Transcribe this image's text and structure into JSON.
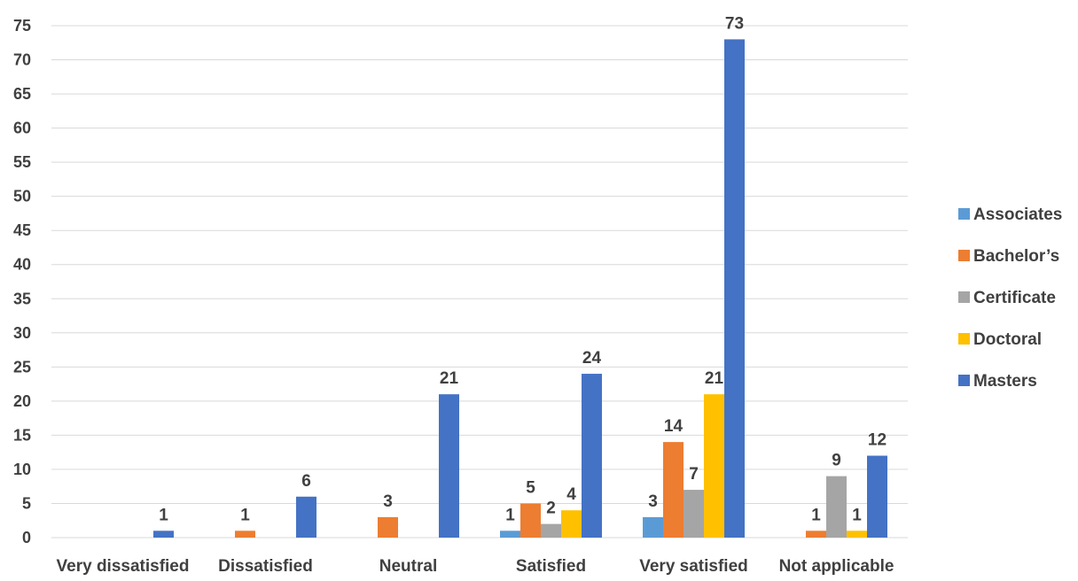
{
  "chart_data": {
    "type": "bar",
    "title": "",
    "xlabel": "",
    "ylabel": "",
    "ylim": [
      0,
      75
    ],
    "y_ticks": [
      0,
      5,
      10,
      15,
      20,
      25,
      30,
      35,
      40,
      45,
      50,
      55,
      60,
      65,
      70,
      75
    ],
    "grid": true,
    "legend_position": "right",
    "categories": [
      "Very dissatisfied",
      "Dissatisfied",
      "Neutral",
      "Satisfied",
      "Very satisfied",
      "Not applicable"
    ],
    "series": [
      {
        "name": "Associates",
        "color": "#5B9BD5",
        "values": [
          0,
          0,
          0,
          1,
          3,
          0
        ]
      },
      {
        "name": "Bachelor’s",
        "color": "#ED7D31",
        "values": [
          0,
          1,
          3,
          5,
          14,
          1
        ]
      },
      {
        "name": "Certificate",
        "color": "#A5A5A5",
        "values": [
          0,
          0,
          0,
          2,
          7,
          9
        ]
      },
      {
        "name": "Doctoral",
        "color": "#FFC000",
        "values": [
          0,
          0,
          0,
          4,
          21,
          1
        ]
      },
      {
        "name": "Masters",
        "color": "#4472C4",
        "values": [
          1,
          6,
          21,
          24,
          73,
          12
        ]
      }
    ]
  }
}
